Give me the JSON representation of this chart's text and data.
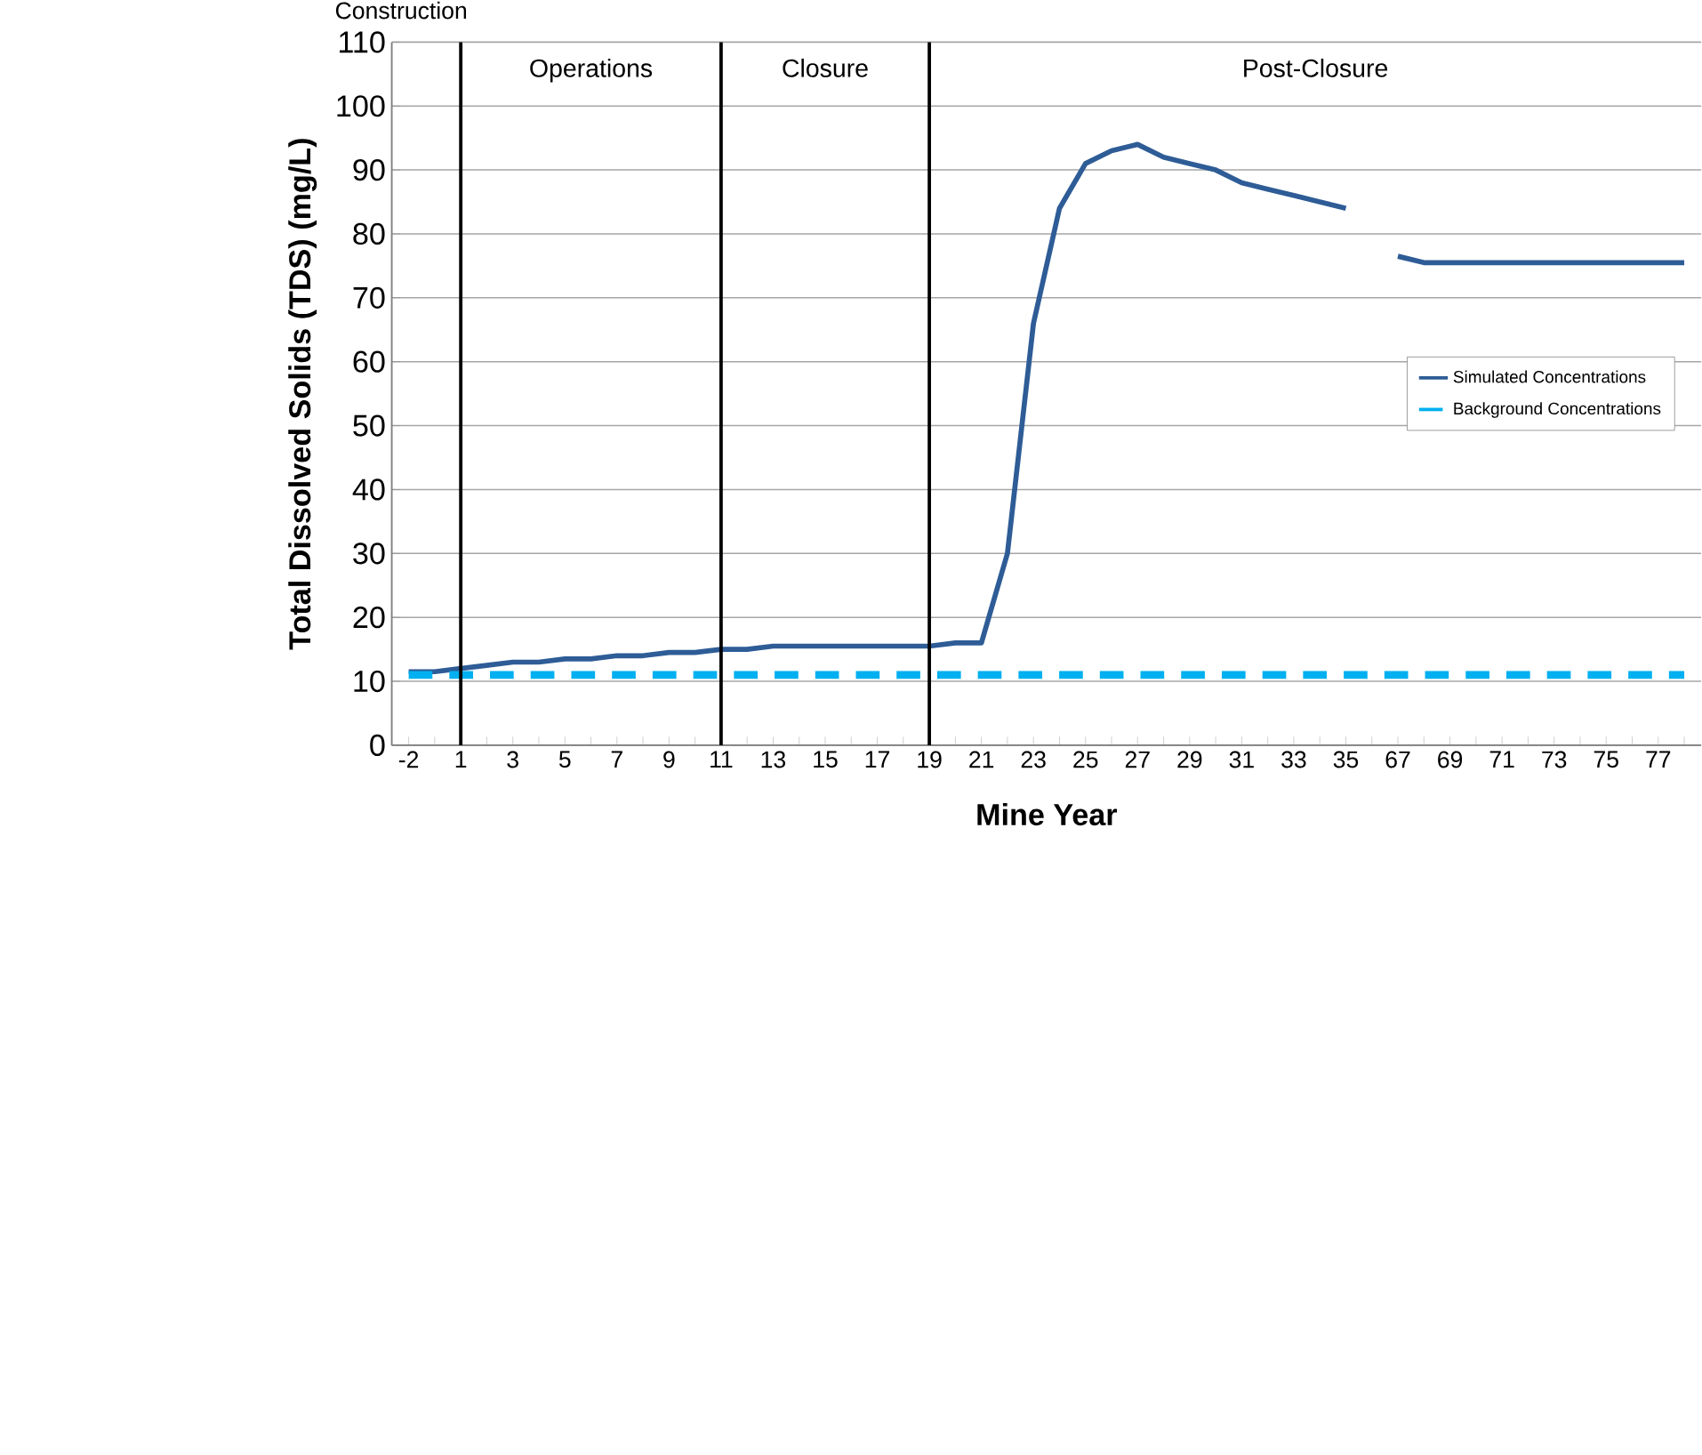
{
  "chart_data": {
    "type": "line",
    "xlabel": "Mine Year",
    "ylabel": "Total Dissolved Solids  (TDS) (mg/L)",
    "categories": [
      "-2",
      null,
      "1",
      null,
      "3",
      null,
      "5",
      null,
      "7",
      null,
      "9",
      null,
      "11",
      null,
      "13",
      null,
      "15",
      null,
      "17",
      null,
      "19",
      null,
      "21",
      null,
      "23",
      null,
      "25",
      null,
      "27",
      null,
      "29",
      null,
      "31",
      null,
      "33",
      null,
      "35",
      null,
      "67",
      null,
      "69",
      null,
      "71",
      null,
      "73",
      null,
      "75",
      null,
      "77",
      null
    ],
    "series": [
      {
        "name": "Simulated Concentrations",
        "color": "#2e5c96",
        "line_style": "solid",
        "values": [
          11.5,
          11.5,
          12,
          12.5,
          13,
          13,
          13.5,
          13.5,
          14,
          14,
          14.5,
          14.5,
          15,
          15,
          15.5,
          15.5,
          15.5,
          15.5,
          15.5,
          15.5,
          15.5,
          16,
          16,
          30,
          66,
          84,
          91,
          93,
          94,
          92,
          91,
          90,
          88,
          87,
          86,
          85,
          84,
          null,
          76.5,
          75.5,
          75.5,
          75.5,
          75.5,
          75.5,
          75.5,
          75.5,
          75.5,
          75.5,
          75.5,
          75.5
        ]
      },
      {
        "name": "Background Concentrations",
        "color": "#00b0f0",
        "line_style": "dashed",
        "values": [
          11,
          11,
          11,
          11,
          11,
          11,
          11,
          11,
          11,
          11,
          11,
          11,
          11,
          11,
          11,
          11,
          11,
          11,
          11,
          11,
          11,
          11,
          11,
          11,
          11,
          11,
          11,
          11,
          11,
          11,
          11,
          11,
          11,
          11,
          11,
          11,
          11,
          11,
          11,
          11,
          11,
          11,
          11,
          11,
          11,
          11,
          11,
          11,
          11,
          11
        ]
      }
    ],
    "ylim": [
      0,
      110
    ],
    "yticks": [
      0,
      10,
      20,
      30,
      40,
      50,
      60,
      70,
      80,
      90,
      100,
      110
    ],
    "grid": "y",
    "legend": "right",
    "marker": "none",
    "ref_lines": [
      {
        "axis": "x",
        "value": "1",
        "color": "#000000"
      },
      {
        "axis": "x",
        "value": "11",
        "color": "#000000"
      },
      {
        "axis": "x",
        "value": "19",
        "color": "#000000"
      }
    ],
    "annotations": [
      "Construction",
      "Operations",
      "Closure",
      "Post-Closure"
    ]
  }
}
